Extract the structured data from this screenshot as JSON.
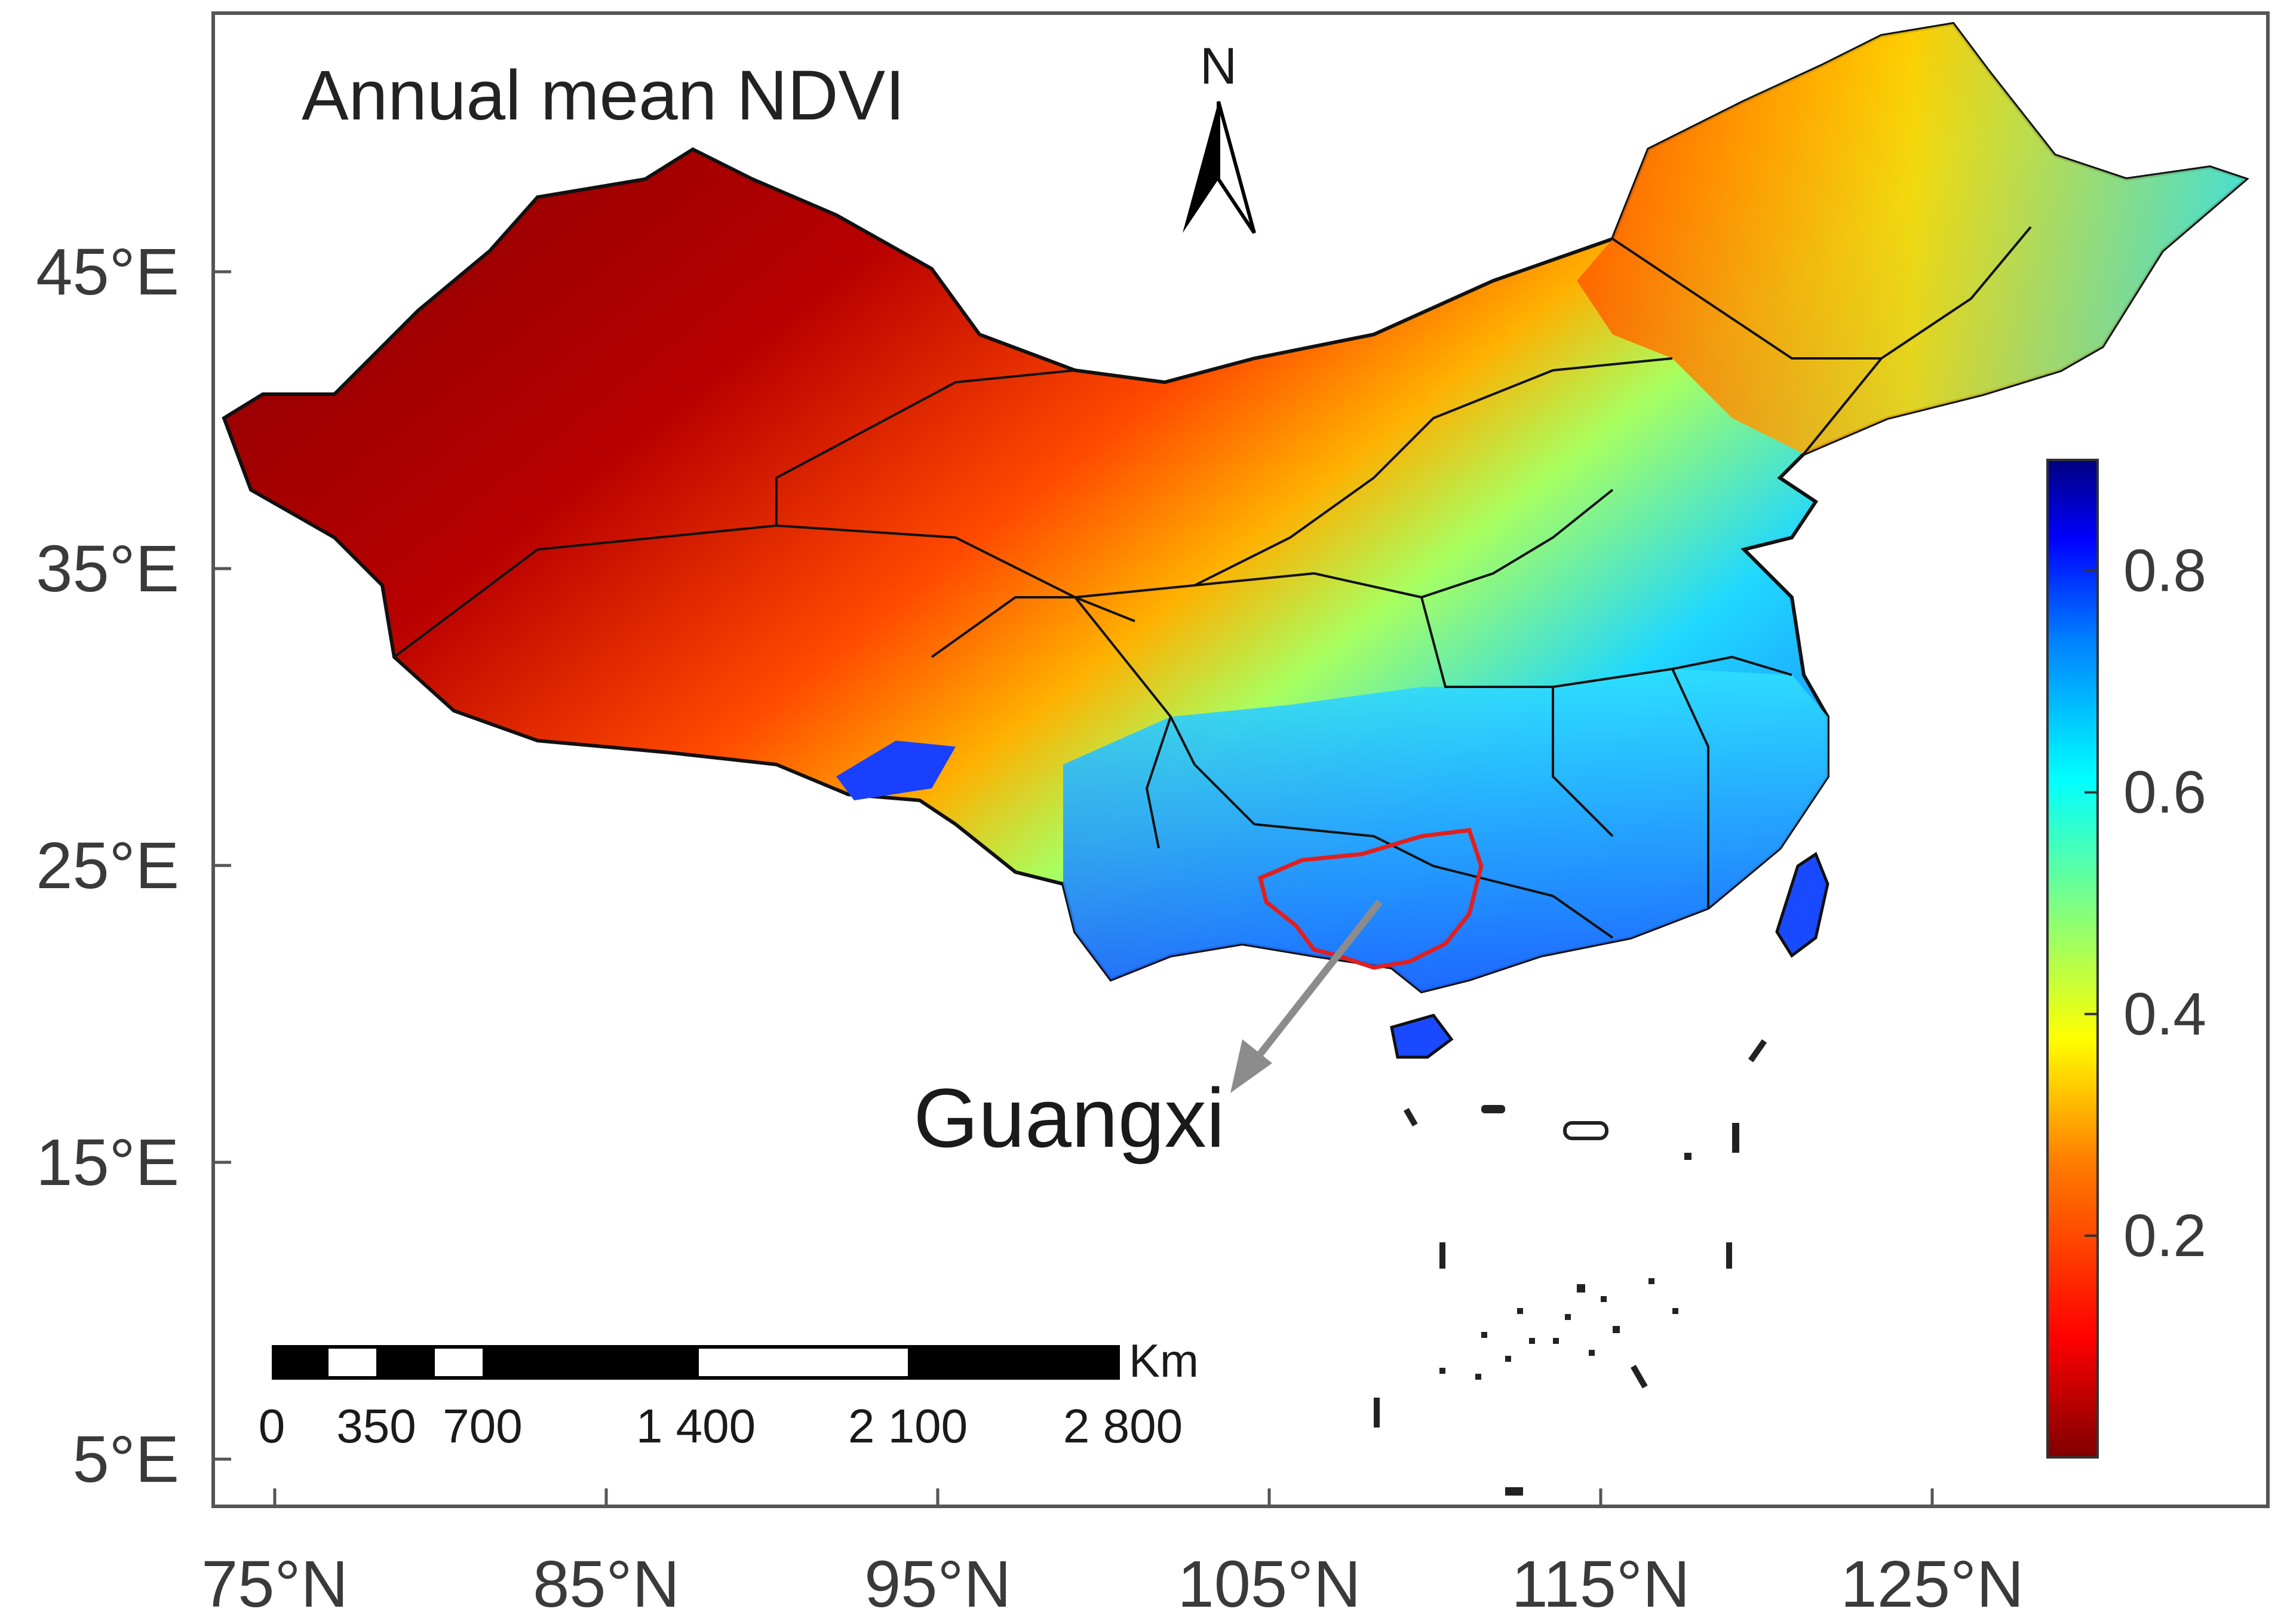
{
  "map": {
    "title": "Annual mean NDVI",
    "region_label": "Guangxi",
    "north_label": "N",
    "scale_bar": {
      "unit": "Km",
      "ticks": [
        "0",
        "350",
        "700",
        "1 400",
        "2 100",
        "2 800"
      ]
    },
    "colorbar": {
      "ticks": [
        "0.8",
        "0.6",
        "0.4",
        "0.2"
      ],
      "tick_values": [
        0.8,
        0.6,
        0.4,
        0.2
      ],
      "range": [
        0.0,
        0.9
      ],
      "colormap": "jet_reversed"
    },
    "x_axis_ticks": [
      "75°N",
      "85°N",
      "95°N",
      "105°N",
      "115°N",
      "125°N"
    ],
    "y_axis_ticks": [
      "45°E",
      "35°E",
      "25°E",
      "15°E",
      "5°E"
    ],
    "colors": {
      "region_outline": "#e02020",
      "arrow": "#8c8c8c"
    }
  }
}
